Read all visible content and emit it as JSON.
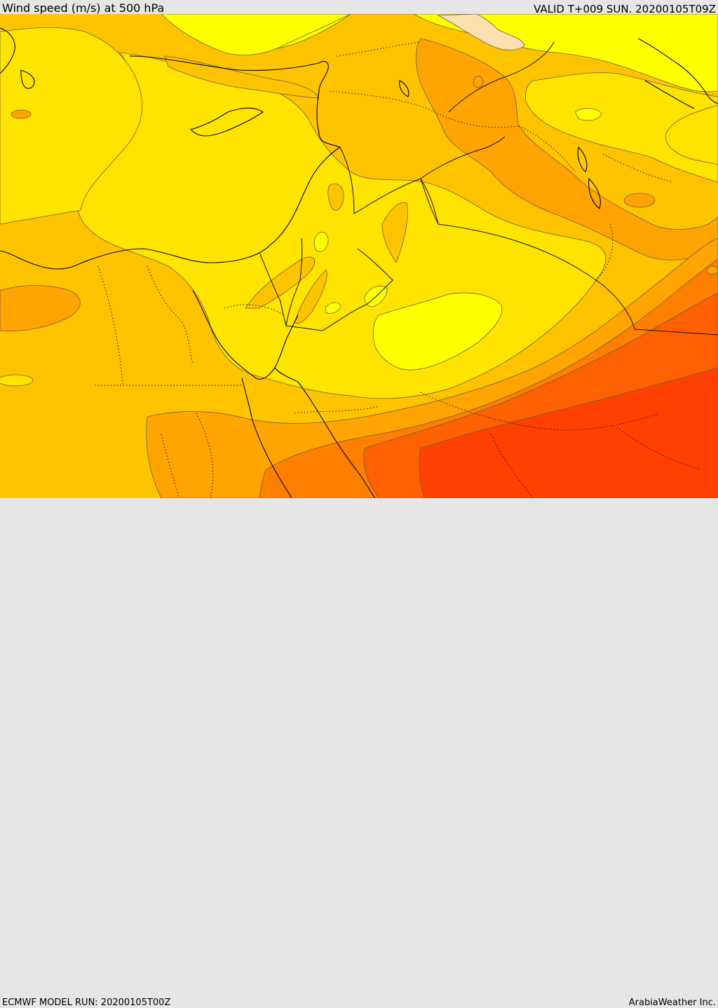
{
  "header": {
    "title": "Wind speed (m/s) at 500 hPa",
    "valid": "VALID T+009 SUN. 20200105T09Z"
  },
  "footer": {
    "model_run": "ECMWF MODEL RUN: 20200105T00Z",
    "brand": "ArabiaWeather Inc."
  },
  "palette": {
    "band_1": "#ffff00",
    "band_2": "#ffe400",
    "band_3": "#ffc400",
    "band_4": "#ffa400",
    "band_5": "#ff8000",
    "band_6": "#ff6000",
    "band_7": "#ff4000",
    "calm": "#fbe0b0"
  }
}
